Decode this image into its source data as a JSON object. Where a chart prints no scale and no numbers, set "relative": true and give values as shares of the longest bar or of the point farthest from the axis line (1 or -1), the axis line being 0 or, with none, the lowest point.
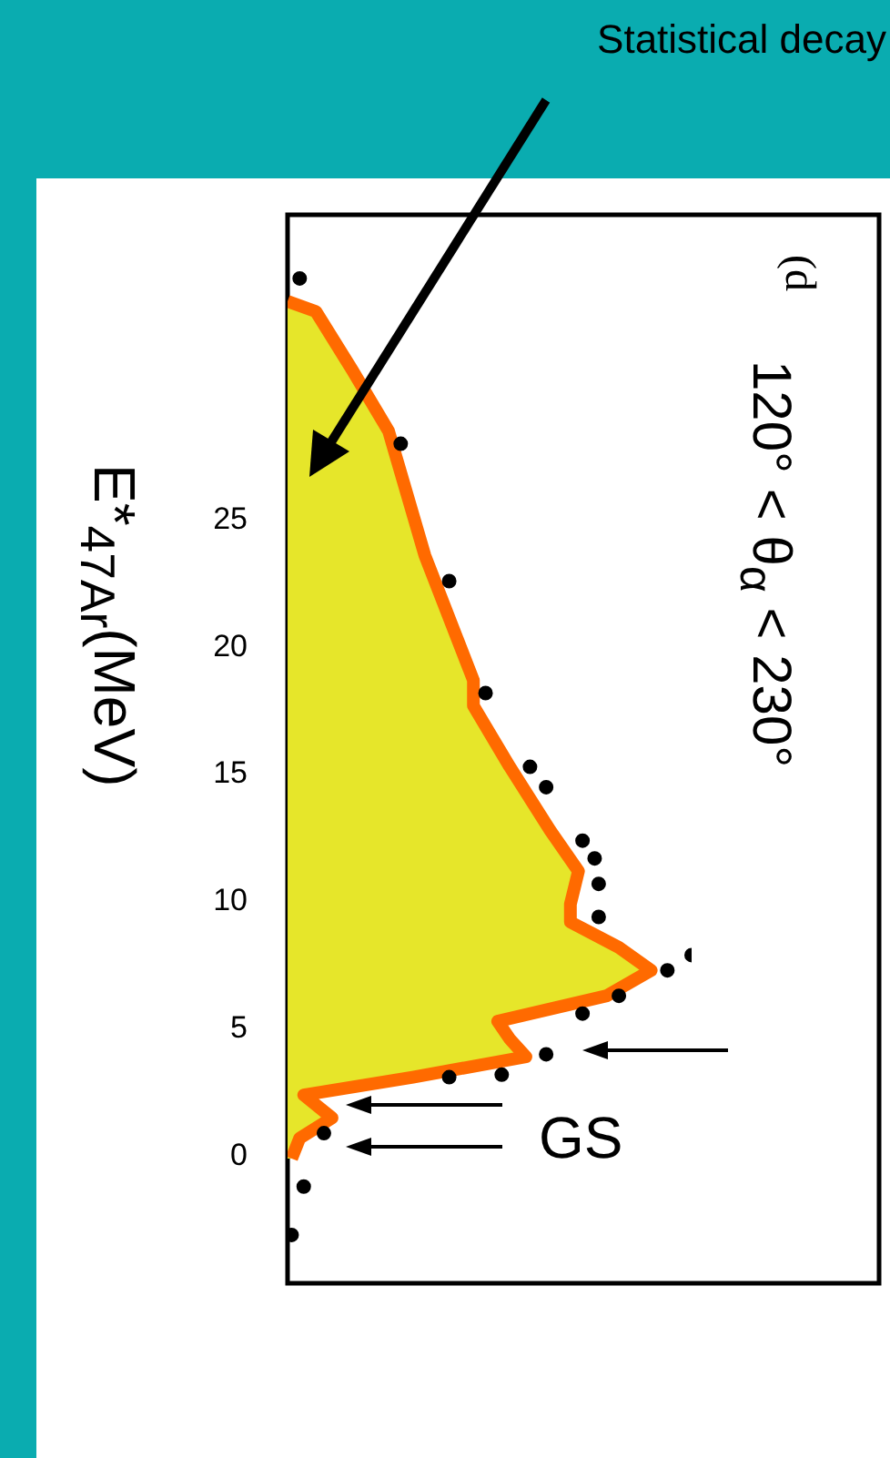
{
  "chart_data": {
    "type": "area",
    "orientation": "horizontal",
    "ylabel": "E*$_{47Ar}$(MeV)",
    "relative": true,
    "ylim": [
      -5,
      37
    ],
    "yticks": [
      0,
      5,
      10,
      15,
      20,
      25
    ],
    "tick_labels": "y",
    "grid": false,
    "legend": false,
    "annotations": [
      "Statistical decay",
      "(d",
      "120° < θ$_{α}$ < 230°",
      "GS"
    ],
    "series": [
      {
        "color": "#ff6a00",
        "x": [
          33.6,
          33.2,
          30.9,
          28.5,
          23.6,
          18.7,
          17.7,
          15.3,
          12.8,
          11.2,
          9.9,
          9.2,
          8.2,
          7.3,
          6.3,
          5.3,
          4.6,
          3.9,
          3.1,
          2.4,
          1.5,
          0.7,
          -0.1
        ],
        "values": [
          0,
          0.07,
          0.16,
          0.25,
          0.34,
          0.46,
          0.46,
          0.55,
          0.65,
          0.72,
          0.7,
          0.7,
          0.82,
          0.9,
          0.79,
          0.52,
          0.55,
          0.59,
          0.31,
          0.04,
          0.11,
          0.03,
          0.01
        ]
      },
      {
        "type": "scatter",
        "color": "#000000",
        "marker": "circle",
        "x": [
          34.5,
          28,
          22.6,
          18.2,
          15.3,
          14.5,
          12.4,
          11.7,
          10.7,
          9.4,
          7.9,
          7.3,
          6.3,
          5.6,
          4,
          3.2,
          3.1,
          0.9,
          -1.2,
          -3.1
        ],
        "values": [
          0.03,
          0.28,
          0.4,
          0.49,
          0.6,
          0.64,
          0.73,
          0.76,
          0.77,
          0.77,
          1,
          0.94,
          0.82,
          0.73,
          0.64,
          0.53,
          0.4,
          0.09,
          0.04,
          0.01
        ]
      }
    ]
  }
}
